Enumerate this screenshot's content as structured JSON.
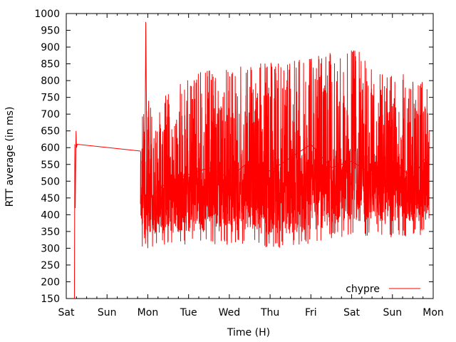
{
  "chart_data": {
    "type": "line",
    "title": "",
    "xlabel": "Time (H)",
    "ylabel": "RTT average (in ms)",
    "x_ticks": [
      "Sat",
      "Sun",
      "Mon",
      "Tue",
      "Wed",
      "Thu",
      "Fri",
      "Sat",
      "Sun",
      "Mon"
    ],
    "xlim": [
      "Sat",
      "Mon"
    ],
    "ylim": [
      150,
      1000
    ],
    "y_ticks": [
      150,
      200,
      250,
      300,
      350,
      400,
      450,
      500,
      550,
      600,
      650,
      700,
      750,
      800,
      850,
      900,
      950,
      1000
    ],
    "grid": false,
    "legend": "bottom-right",
    "line_color": "#ff0000",
    "series": [
      {
        "name": "chypre",
        "color": "#ff0000",
        "x_days": [
          0.2,
          0.21,
          0.22,
          0.24,
          0.25,
          0.27,
          1.82,
          1.85,
          1.88,
          1.9,
          1.92,
          1.95,
          1.98,
          2.0,
          2.02,
          2.05,
          2.5,
          3.0,
          3.5,
          4.0,
          4.5,
          5.0,
          5.5,
          6.0,
          6.5,
          7.0,
          7.5,
          8.0,
          8.5,
          8.75,
          8.9
        ],
        "y": [
          150,
          610,
          420,
          650,
          600,
          610,
          590,
          560,
          420,
          700,
          330,
          975,
          520,
          300,
          740,
          450,
          500,
          520,
          540,
          510,
          560,
          530,
          570,
          610,
          540,
          560,
          520,
          560,
          510,
          560,
          580
        ],
        "band_low": [
          300,
          305,
          310,
          305,
          310,
          300,
          305,
          320,
          340,
          330,
          335,
          340
        ],
        "band_high": [
          700,
          760,
          820,
          840,
          850,
          860,
          870,
          880,
          900,
          860,
          820,
          800
        ]
      }
    ]
  }
}
